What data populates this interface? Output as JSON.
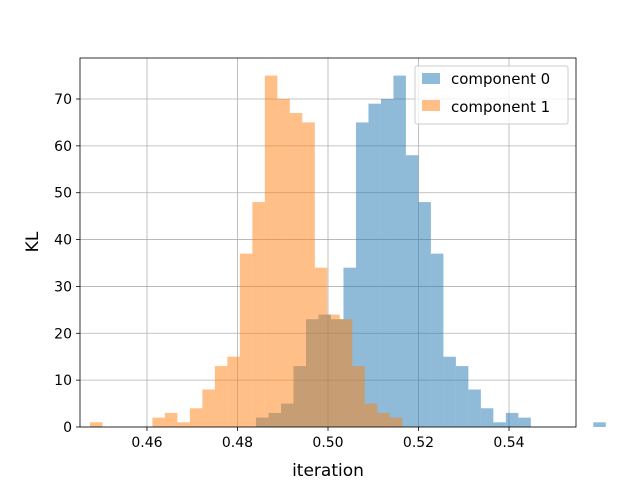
{
  "chart_data": {
    "type": "histogram",
    "title": "",
    "xlabel": "iteration",
    "ylabel": "KL",
    "xlim": [
      0.4452,
      0.5548
    ],
    "ylim": [
      0,
      78.75
    ],
    "xticks": [
      0.46,
      0.48,
      0.5,
      0.52,
      0.54
    ],
    "xtick_labels": [
      "0.46",
      "0.48",
      "0.50",
      "0.52",
      "0.54"
    ],
    "yticks": [
      0,
      10,
      20,
      30,
      40,
      50,
      60,
      70
    ],
    "ytick_labels": [
      "0",
      "10",
      "20",
      "30",
      "40",
      "50",
      "60",
      "70"
    ],
    "grid": true,
    "legend_position": "top-right",
    "series": [
      {
        "name": "component 0",
        "color": "#1f77b4",
        "alpha": 0.5,
        "bin_start": 0.4841,
        "bin_width": 0.00276,
        "values": [
          2,
          3,
          5,
          13,
          23,
          24,
          23,
          34,
          65,
          69,
          70,
          75,
          58,
          48,
          37,
          15,
          13,
          8,
          4,
          1,
          3,
          2,
          0,
          0,
          0,
          0,
          0,
          1
        ]
      },
      {
        "name": "component 1",
        "color": "#ff7f0e",
        "alpha": 0.5,
        "bin_start": 0.4474,
        "bin_width": 0.00276,
        "values": [
          1,
          0,
          0,
          0,
          0,
          2,
          3,
          1,
          4,
          8,
          13,
          15,
          37,
          48,
          75,
          70,
          67,
          65,
          34,
          24,
          23,
          13,
          5,
          3,
          2
        ]
      }
    ]
  }
}
